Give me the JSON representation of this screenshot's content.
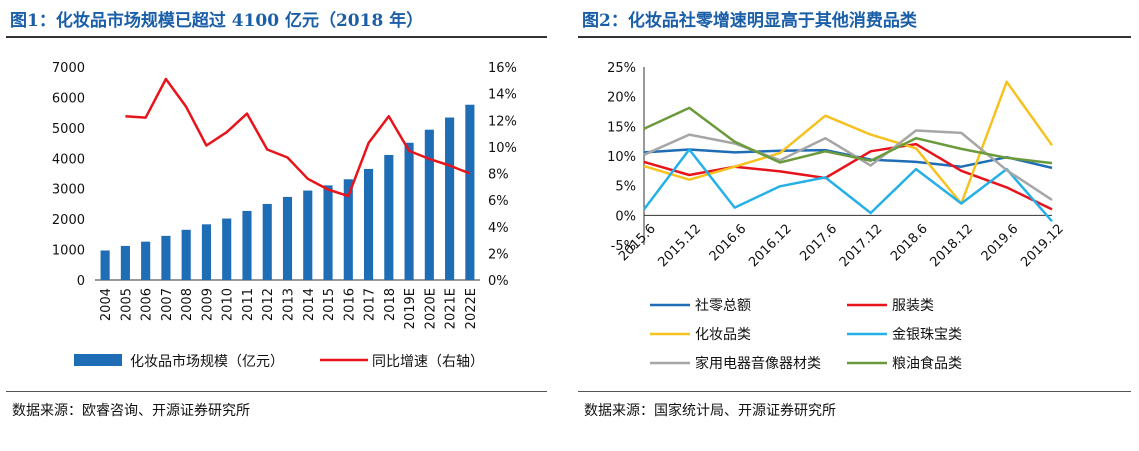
{
  "left": {
    "title": "图1：化妆品市场规模已超过 4100 亿元（2018 年）",
    "source": "数据来源：欧睿咨询、开源证券研究所"
  },
  "right": {
    "title": "图2：化妆品社零增速明显高于其他消费品类",
    "source": "数据来源：国家统计局、开源证券研究所"
  },
  "chart_data": [
    {
      "type": "bar",
      "categories": [
        "2004",
        "2005",
        "2006",
        "2007",
        "2008",
        "2009",
        "2010",
        "2011",
        "2012",
        "2013",
        "2014",
        "2015",
        "2016",
        "2017",
        "2018",
        "2019E",
        "2020E",
        "2021E",
        "2022E"
      ],
      "series": [
        {
          "name": "化妆品市场规模（亿元）",
          "type": "bar",
          "axis": "left",
          "color": "#1f6db5",
          "values": [
            970,
            1120,
            1260,
            1450,
            1650,
            1830,
            2020,
            2270,
            2500,
            2730,
            2940,
            3110,
            3310,
            3650,
            4110,
            4510,
            4940,
            5340,
            5760
          ]
        },
        {
          "name": "同比增速（右轴）",
          "type": "line",
          "axis": "right",
          "color": "#e8141b",
          "values": [
            null,
            12.3,
            12.2,
            15.1,
            13.0,
            10.1,
            11.1,
            12.5,
            9.8,
            9.2,
            7.6,
            6.8,
            6.3,
            10.3,
            12.3,
            9.7,
            9.1,
            8.6,
            8.0
          ]
        }
      ],
      "ylim": [
        0,
        7000
      ],
      "yticks": [
        0,
        1000,
        2000,
        3000,
        4000,
        5000,
        6000,
        7000
      ],
      "y2lim": [
        0,
        16
      ],
      "y2ticks": [
        "0%",
        "2%",
        "4%",
        "6%",
        "8%",
        "10%",
        "12%",
        "14%",
        "16%"
      ],
      "legend": "bottom"
    },
    {
      "type": "line",
      "categories": [
        "2015.6",
        "2015.12",
        "2016.6",
        "2016.12",
        "2017.6",
        "2017.12",
        "2018.6",
        "2018.12",
        "2019.6",
        "2019.12"
      ],
      "series": [
        {
          "name": "社零总额",
          "color": "#1f6db5",
          "values": [
            10.6,
            11.1,
            10.6,
            10.9,
            11.0,
            9.4,
            9.0,
            8.2,
            9.8,
            8.0
          ]
        },
        {
          "name": "服装类",
          "color": "#e8141b",
          "values": [
            9.0,
            6.8,
            8.2,
            7.4,
            6.3,
            10.8,
            12.0,
            7.5,
            4.7,
            1.0
          ]
        },
        {
          "name": "化妆品类",
          "color": "#f6c220",
          "values": [
            8.3,
            6.0,
            8.2,
            10.5,
            16.8,
            13.6,
            11.3,
            2.0,
            22.5,
            11.8
          ]
        },
        {
          "name": "金银珠宝类",
          "color": "#26b0e8",
          "values": [
            1.0,
            11.1,
            1.3,
            4.9,
            6.4,
            0.4,
            7.8,
            2.0,
            7.8,
            -1.0
          ]
        },
        {
          "name": "家用电器音像器材类",
          "color": "#a6a6a6",
          "values": [
            10.2,
            13.6,
            12.1,
            9.3,
            13.0,
            8.4,
            14.3,
            13.9,
            7.6,
            2.6
          ]
        },
        {
          "name": "粮油食品类",
          "color": "#6b9a3c",
          "values": [
            14.6,
            18.1,
            12.4,
            8.9,
            10.8,
            9.2,
            13.0,
            11.2,
            9.7,
            8.8
          ]
        }
      ],
      "ylim": [
        -5,
        25
      ],
      "yticks": [
        "-5%",
        "0%",
        "5%",
        "10%",
        "15%",
        "20%",
        "25%"
      ],
      "legend": "bottom"
    }
  ]
}
